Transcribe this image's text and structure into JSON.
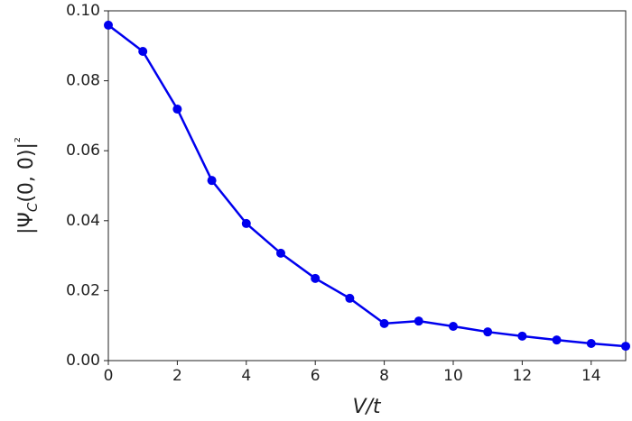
{
  "chart_data": {
    "type": "line",
    "xlabel": "V/t",
    "ylabel": "|ΨC(0, 0)|²",
    "x": [
      0,
      1,
      2,
      3,
      4,
      5,
      6,
      7,
      8,
      9,
      10,
      11,
      12,
      13,
      14,
      15
    ],
    "series": [
      {
        "color": "#0000ee",
        "values": [
          0.0959,
          0.0884,
          0.0719,
          0.0515,
          0.0392,
          0.0307,
          0.0235,
          0.0178,
          0.0106,
          0.0113,
          0.0098,
          0.0082,
          0.007,
          0.0059,
          0.0049,
          0.0041
        ]
      }
    ],
    "xlim": [
      0,
      15
    ],
    "xticks": [
      0,
      2,
      4,
      6,
      8,
      10,
      12,
      14
    ],
    "ylim": [
      0,
      0.1
    ],
    "yticks": [
      {
        "value": 0,
        "label": "0.00"
      },
      {
        "value": 0.02,
        "label": "0.02"
      },
      {
        "value": 0.04,
        "label": "0.04"
      },
      {
        "value": 0.06,
        "label": "0.06"
      },
      {
        "value": 0.08,
        "label": "0.08"
      },
      {
        "value": 0.1,
        "label": "0.10"
      }
    ],
    "grid": false
  }
}
